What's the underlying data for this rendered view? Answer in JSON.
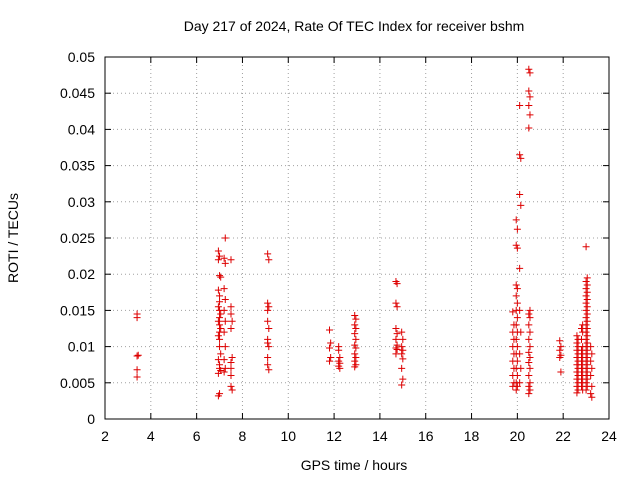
{
  "chart_data": {
    "type": "scatter",
    "title": "Day 217 of 2024, Rate Of TEC Index for receiver bshm",
    "xlabel": "GPS time / hours",
    "ylabel": "ROTI / TECUs",
    "xlim": [
      2,
      24
    ],
    "ylim": [
      0,
      0.05
    ],
    "xticks": [
      2,
      4,
      6,
      8,
      10,
      12,
      14,
      16,
      18,
      20,
      22,
      24
    ],
    "yticks": [
      0,
      0.005,
      0.01,
      0.015,
      0.02,
      0.025,
      0.03,
      0.035,
      0.04,
      0.045,
      0.05
    ],
    "ytick_labels": [
      "0",
      "0.005",
      "0.01",
      "0.015",
      "0.02",
      "0.025",
      "0.03",
      "0.035",
      "0.04",
      "0.045",
      "0.05"
    ],
    "grid": true,
    "marker": "+",
    "color": "#dd0000",
    "series": [
      {
        "name": "ROTI",
        "points": [
          [
            3.4,
            0.0145
          ],
          [
            3.4,
            0.014
          ],
          [
            3.45,
            0.0088
          ],
          [
            3.4,
            0.0087
          ],
          [
            3.4,
            0.0068
          ],
          [
            3.4,
            0.0058
          ],
          [
            6.95,
            0.0232
          ],
          [
            7.0,
            0.0225
          ],
          [
            6.95,
            0.022
          ],
          [
            7.0,
            0.0198
          ],
          [
            7.05,
            0.0196
          ],
          [
            6.95,
            0.0178
          ],
          [
            7.0,
            0.017
          ],
          [
            7.0,
            0.0162
          ],
          [
            6.95,
            0.0155
          ],
          [
            7.0,
            0.015
          ],
          [
            7.05,
            0.0145
          ],
          [
            7.0,
            0.014
          ],
          [
            6.95,
            0.0135
          ],
          [
            7.0,
            0.013
          ],
          [
            7.05,
            0.0125
          ],
          [
            7.0,
            0.012
          ],
          [
            6.95,
            0.0115
          ],
          [
            7.0,
            0.011
          ],
          [
            7.0,
            0.01
          ],
          [
            7.05,
            0.009
          ],
          [
            6.95,
            0.0082
          ],
          [
            7.0,
            0.0075
          ],
          [
            7.0,
            0.007
          ],
          [
            7.05,
            0.0067
          ],
          [
            6.95,
            0.0063
          ],
          [
            7.0,
            0.0035
          ],
          [
            6.95,
            0.0032
          ],
          [
            7.25,
            0.025
          ],
          [
            7.2,
            0.0222
          ],
          [
            7.25,
            0.0215
          ],
          [
            7.2,
            0.018
          ],
          [
            7.25,
            0.0165
          ],
          [
            7.2,
            0.015
          ],
          [
            7.25,
            0.0135
          ],
          [
            7.2,
            0.012
          ],
          [
            7.25,
            0.01
          ],
          [
            7.2,
            0.0082
          ],
          [
            7.25,
            0.007
          ],
          [
            7.2,
            0.0065
          ],
          [
            7.5,
            0.022
          ],
          [
            7.5,
            0.0155
          ],
          [
            7.5,
            0.0145
          ],
          [
            7.55,
            0.0135
          ],
          [
            7.5,
            0.0125
          ],
          [
            7.55,
            0.0085
          ],
          [
            7.5,
            0.0078
          ],
          [
            7.5,
            0.007
          ],
          [
            7.5,
            0.006
          ],
          [
            7.5,
            0.0045
          ],
          [
            7.55,
            0.004
          ],
          [
            9.1,
            0.0228
          ],
          [
            9.15,
            0.022
          ],
          [
            9.1,
            0.016
          ],
          [
            9.15,
            0.0155
          ],
          [
            9.1,
            0.015
          ],
          [
            9.1,
            0.0135
          ],
          [
            9.15,
            0.0125
          ],
          [
            9.1,
            0.011
          ],
          [
            9.1,
            0.0105
          ],
          [
            9.15,
            0.01
          ],
          [
            9.1,
            0.0085
          ],
          [
            9.1,
            0.0075
          ],
          [
            9.15,
            0.0068
          ],
          [
            11.8,
            0.0123
          ],
          [
            11.85,
            0.0105
          ],
          [
            11.8,
            0.0098
          ],
          [
            11.85,
            0.0085
          ],
          [
            11.8,
            0.008
          ],
          [
            12.2,
            0.01
          ],
          [
            12.2,
            0.0095
          ],
          [
            12.25,
            0.0085
          ],
          [
            12.2,
            0.008
          ],
          [
            12.25,
            0.0077
          ],
          [
            12.2,
            0.0073
          ],
          [
            12.25,
            0.007
          ],
          [
            12.9,
            0.0143
          ],
          [
            12.95,
            0.0138
          ],
          [
            12.9,
            0.013
          ],
          [
            12.95,
            0.0125
          ],
          [
            12.9,
            0.0118
          ],
          [
            12.95,
            0.011
          ],
          [
            12.9,
            0.0102
          ],
          [
            12.95,
            0.0098
          ],
          [
            12.9,
            0.009
          ],
          [
            12.95,
            0.0085
          ],
          [
            12.9,
            0.008
          ],
          [
            12.95,
            0.0075
          ],
          [
            12.9,
            0.0072
          ],
          [
            14.7,
            0.019
          ],
          [
            14.75,
            0.0187
          ],
          [
            14.7,
            0.016
          ],
          [
            14.75,
            0.0155
          ],
          [
            14.7,
            0.0125
          ],
          [
            14.75,
            0.0118
          ],
          [
            14.7,
            0.011
          ],
          [
            14.75,
            0.0102
          ],
          [
            14.7,
            0.0098
          ],
          [
            14.75,
            0.0096
          ],
          [
            14.7,
            0.009
          ],
          [
            14.95,
            0.012
          ],
          [
            15.0,
            0.011
          ],
          [
            14.95,
            0.01
          ],
          [
            15.0,
            0.0095
          ],
          [
            14.95,
            0.009
          ],
          [
            15.0,
            0.0083
          ],
          [
            14.95,
            0.007
          ],
          [
            15.0,
            0.0055
          ],
          [
            14.95,
            0.0047
          ],
          [
            19.8,
            0.0148
          ],
          [
            19.85,
            0.013
          ],
          [
            19.8,
            0.012
          ],
          [
            19.85,
            0.011
          ],
          [
            19.8,
            0.01
          ],
          [
            19.85,
            0.009
          ],
          [
            19.8,
            0.008
          ],
          [
            19.85,
            0.007
          ],
          [
            19.8,
            0.006
          ],
          [
            19.85,
            0.005
          ],
          [
            19.8,
            0.0045
          ],
          [
            19.95,
            0.024
          ],
          [
            20.0,
            0.0236
          ],
          [
            19.95,
            0.0275
          ],
          [
            20.0,
            0.0262
          ],
          [
            19.95,
            0.0185
          ],
          [
            20.0,
            0.018
          ],
          [
            19.95,
            0.017
          ],
          [
            20.0,
            0.016
          ],
          [
            19.95,
            0.015
          ],
          [
            20.0,
            0.014
          ],
          [
            19.95,
            0.013
          ],
          [
            20.0,
            0.012
          ],
          [
            19.95,
            0.011
          ],
          [
            20.0,
            0.01
          ],
          [
            19.95,
            0.009
          ],
          [
            20.0,
            0.008
          ],
          [
            19.95,
            0.007
          ],
          [
            20.0,
            0.006
          ],
          [
            19.95,
            0.005
          ],
          [
            20.0,
            0.0045
          ],
          [
            19.95,
            0.004
          ],
          [
            20.1,
            0.0433
          ],
          [
            20.1,
            0.0365
          ],
          [
            20.15,
            0.036
          ],
          [
            20.1,
            0.031
          ],
          [
            20.15,
            0.0295
          ],
          [
            20.1,
            0.0208
          ],
          [
            20.1,
            0.015
          ],
          [
            20.15,
            0.012
          ],
          [
            20.1,
            0.009
          ],
          [
            20.15,
            0.007
          ],
          [
            20.1,
            0.005
          ],
          [
            20.5,
            0.0483
          ],
          [
            20.55,
            0.0478
          ],
          [
            20.5,
            0.0453
          ],
          [
            20.55,
            0.0445
          ],
          [
            20.5,
            0.0433
          ],
          [
            20.55,
            0.042
          ],
          [
            20.5,
            0.0402
          ],
          [
            20.55,
            0.015
          ],
          [
            20.5,
            0.0145
          ],
          [
            20.55,
            0.014
          ],
          [
            20.5,
            0.013
          ],
          [
            20.55,
            0.012
          ],
          [
            20.5,
            0.011
          ],
          [
            20.55,
            0.01
          ],
          [
            20.5,
            0.0092
          ],
          [
            20.55,
            0.0085
          ],
          [
            20.5,
            0.0078
          ],
          [
            20.55,
            0.007
          ],
          [
            20.5,
            0.006
          ],
          [
            20.55,
            0.005
          ],
          [
            20.5,
            0.0045
          ],
          [
            20.55,
            0.004
          ],
          [
            20.5,
            0.0035
          ],
          [
            21.85,
            0.0108
          ],
          [
            21.9,
            0.01
          ],
          [
            21.85,
            0.0095
          ],
          [
            21.9,
            0.0088
          ],
          [
            21.85,
            0.0085
          ],
          [
            21.9,
            0.0065
          ],
          [
            22.6,
            0.0115
          ],
          [
            22.65,
            0.011
          ],
          [
            22.6,
            0.0105
          ],
          [
            22.65,
            0.01
          ],
          [
            22.6,
            0.0095
          ],
          [
            22.65,
            0.009
          ],
          [
            22.6,
            0.0085
          ],
          [
            22.65,
            0.008
          ],
          [
            22.6,
            0.0075
          ],
          [
            22.65,
            0.007
          ],
          [
            22.6,
            0.0065
          ],
          [
            22.65,
            0.006
          ],
          [
            22.6,
            0.0055
          ],
          [
            22.65,
            0.005
          ],
          [
            22.6,
            0.0045
          ],
          [
            22.65,
            0.004
          ],
          [
            22.6,
            0.0036
          ],
          [
            22.85,
            0.013
          ],
          [
            22.8,
            0.0125
          ],
          [
            22.85,
            0.012
          ],
          [
            22.8,
            0.011
          ],
          [
            22.85,
            0.01
          ],
          [
            22.8,
            0.0095
          ],
          [
            22.85,
            0.009
          ],
          [
            22.8,
            0.0085
          ],
          [
            22.85,
            0.008
          ],
          [
            22.8,
            0.0075
          ],
          [
            22.85,
            0.007
          ],
          [
            22.8,
            0.0065
          ],
          [
            22.85,
            0.006
          ],
          [
            22.8,
            0.0055
          ],
          [
            22.85,
            0.005
          ],
          [
            22.8,
            0.0045
          ],
          [
            22.85,
            0.004
          ],
          [
            23.0,
            0.0238
          ],
          [
            23.05,
            0.0195
          ],
          [
            23.0,
            0.019
          ],
          [
            23.05,
            0.0185
          ],
          [
            23.0,
            0.018
          ],
          [
            23.05,
            0.0175
          ],
          [
            23.0,
            0.017
          ],
          [
            23.05,
            0.0165
          ],
          [
            23.0,
            0.016
          ],
          [
            23.05,
            0.0155
          ],
          [
            23.0,
            0.015
          ],
          [
            23.05,
            0.0145
          ],
          [
            23.0,
            0.014
          ],
          [
            23.05,
            0.0135
          ],
          [
            23.0,
            0.013
          ],
          [
            23.05,
            0.0125
          ],
          [
            23.0,
            0.012
          ],
          [
            23.05,
            0.0115
          ],
          [
            23.0,
            0.011
          ],
          [
            23.05,
            0.0105
          ],
          [
            23.0,
            0.01
          ],
          [
            23.05,
            0.0095
          ],
          [
            23.0,
            0.009
          ],
          [
            23.05,
            0.0085
          ],
          [
            23.0,
            0.008
          ],
          [
            23.05,
            0.0075
          ],
          [
            23.0,
            0.007
          ],
          [
            23.05,
            0.0065
          ],
          [
            23.0,
            0.006
          ],
          [
            23.05,
            0.0055
          ],
          [
            23.0,
            0.005
          ],
          [
            23.05,
            0.0045
          ],
          [
            23.0,
            0.004
          ],
          [
            23.2,
            0.01
          ],
          [
            23.25,
            0.009
          ],
          [
            23.2,
            0.008
          ],
          [
            23.25,
            0.007
          ],
          [
            23.2,
            0.006
          ],
          [
            23.25,
            0.0045
          ],
          [
            23.2,
            0.0035
          ],
          [
            23.25,
            0.003
          ]
        ]
      }
    ]
  }
}
